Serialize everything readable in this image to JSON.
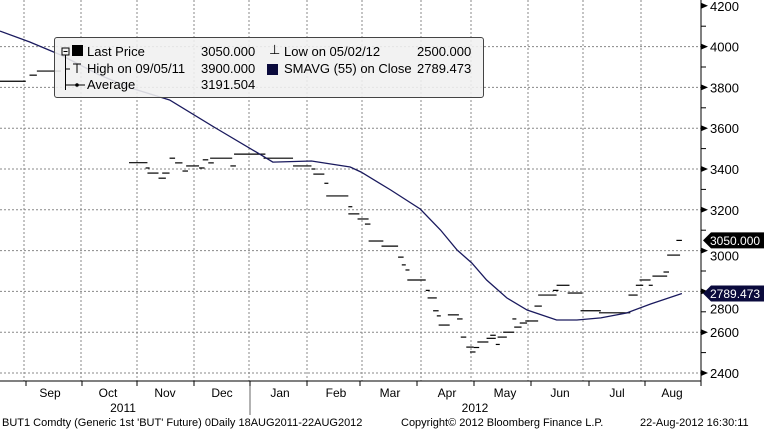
{
  "chart_data": {
    "type": "line",
    "title": "",
    "instrument": "BUT1 Comdty (Generic 1st 'BUT' Future)",
    "y_axis": {
      "side": "right",
      "range": [
        2400,
        4200
      ],
      "ticks": [
        2400,
        2600,
        2800,
        3000,
        3200,
        3400,
        3600,
        3800,
        4000,
        4200
      ],
      "tick_labels": [
        "2400",
        "2600",
        "2800",
        "3000",
        "3200",
        "3400",
        "3600",
        "3800",
        "4000",
        "4200"
      ]
    },
    "x_axis": {
      "range": [
        "2011-08-18",
        "2012-08-22"
      ],
      "month_labels": [
        "Sep",
        "Oct",
        "Nov",
        "Dec",
        "Jan",
        "Feb",
        "Mar",
        "Apr",
        "May",
        "Jun",
        "Jul",
        "Aug"
      ],
      "year_labels": [
        "2011",
        "2012"
      ]
    },
    "grid": true,
    "colors": {
      "price": "#000000",
      "smavg": "#1a1a5e",
      "last_tag": "#000000",
      "smavg_tag": "#0a0a3c"
    },
    "price_series": {
      "name": "Last Price",
      "style": "horizontal-dash",
      "segments": [
        [
          "2011-08-18",
          "2011-09-01",
          3830
        ],
        [
          "2011-09-03",
          "2011-09-07",
          3860
        ],
        [
          "2011-09-07",
          "2011-09-20",
          3880
        ],
        [
          "2011-10-27",
          "2011-11-06",
          3431
        ],
        [
          "2011-11-05",
          "2011-11-07",
          3405
        ],
        [
          "2011-11-06",
          "2011-11-12",
          3380
        ],
        [
          "2011-11-12",
          "2011-11-16",
          3355
        ],
        [
          "2011-11-14",
          "2011-11-18",
          3380
        ],
        [
          "2011-11-18",
          "2011-11-21",
          3453
        ],
        [
          "2011-11-21",
          "2011-11-25",
          3430
        ],
        [
          "2011-11-25",
          "2011-11-28",
          3390
        ],
        [
          "2011-11-27",
          "2011-12-04",
          3415
        ],
        [
          "2011-12-04",
          "2011-12-07",
          3405
        ],
        [
          "2011-12-06",
          "2011-12-09",
          3445
        ],
        [
          "2011-12-09",
          "2011-12-12",
          3430
        ],
        [
          "2011-12-10",
          "2011-12-22",
          3453
        ],
        [
          "2011-12-21",
          "2011-12-24",
          3415
        ],
        [
          "2011-12-23",
          "2012-01-09",
          3473
        ],
        [
          "2012-01-08",
          "2012-01-24",
          3453
        ],
        [
          "2012-01-24",
          "2012-02-03",
          3415
        ],
        [
          "2012-02-03",
          "2012-02-05",
          3400
        ],
        [
          "2012-02-04",
          "2012-02-10",
          3375
        ],
        [
          "2012-02-10",
          "2012-02-11",
          3330
        ],
        [
          "2012-02-11",
          "2012-02-23",
          3268
        ],
        [
          "2012-02-23",
          "2012-02-25",
          3215
        ],
        [
          "2012-02-23",
          "2012-02-29",
          3180
        ],
        [
          "2012-02-28",
          "2012-03-05",
          3155
        ],
        [
          "2012-03-03",
          "2012-03-06",
          3130
        ],
        [
          "2012-03-05",
          "2012-03-13",
          3047
        ],
        [
          "2012-03-12",
          "2012-03-21",
          3022
        ],
        [
          "2012-03-21",
          "2012-03-24",
          2968
        ],
        [
          "2012-03-23",
          "2012-03-25",
          2930
        ],
        [
          "2012-03-25",
          "2012-03-27",
          2905
        ],
        [
          "2012-03-26",
          "2012-04-05",
          2856
        ],
        [
          "2012-04-05",
          "2012-04-06",
          2805
        ],
        [
          "2012-04-06",
          "2012-04-11",
          2768
        ],
        [
          "2012-04-09",
          "2012-04-12",
          2705
        ],
        [
          "2012-04-11",
          "2012-04-13",
          2680
        ],
        [
          "2012-04-12",
          "2012-04-18",
          2635
        ],
        [
          "2012-04-17",
          "2012-04-23",
          2685
        ],
        [
          "2012-04-22",
          "2012-04-25",
          2665
        ],
        [
          "2012-04-24",
          "2012-04-27",
          2576
        ],
        [
          "2012-04-27",
          "2012-05-01",
          2527
        ],
        [
          "2012-04-29",
          "2012-05-02",
          2503
        ],
        [
          "2012-05-01",
          "2012-05-04",
          2525
        ],
        [
          "2012-05-03",
          "2012-05-09",
          2552
        ],
        [
          "2012-05-08",
          "2012-05-13",
          2570
        ],
        [
          "2012-05-10",
          "2012-05-13",
          2585
        ],
        [
          "2012-05-13",
          "2012-05-15",
          2540
        ],
        [
          "2012-05-14",
          "2012-05-19",
          2576
        ],
        [
          "2012-05-17",
          "2012-05-23",
          2600
        ],
        [
          "2012-05-22",
          "2012-05-24",
          2665
        ],
        [
          "2012-05-23",
          "2012-05-27",
          2625
        ],
        [
          "2012-05-26",
          "2012-05-30",
          2645
        ],
        [
          "2012-05-29",
          "2012-06-05",
          2655
        ],
        [
          "2012-06-03",
          "2012-06-07",
          2728
        ],
        [
          "2012-06-05",
          "2012-06-15",
          2782
        ],
        [
          "2012-06-13",
          "2012-06-16",
          2805
        ],
        [
          "2012-06-15",
          "2012-06-22",
          2830
        ],
        [
          "2012-06-21",
          "2012-06-29",
          2792
        ],
        [
          "2012-06-28",
          "2012-07-09",
          2705
        ],
        [
          "2012-07-08",
          "2012-07-25",
          2695
        ],
        [
          "2012-07-24",
          "2012-07-29",
          2782
        ],
        [
          "2012-07-28",
          "2012-08-01",
          2830
        ],
        [
          "2012-07-30",
          "2012-08-05",
          2856
        ],
        [
          "2012-08-04",
          "2012-08-06",
          2830
        ],
        [
          "2012-08-06",
          "2012-08-14",
          2875
        ],
        [
          "2012-08-12",
          "2012-08-15",
          2895
        ],
        [
          "2012-08-14",
          "2012-08-21",
          2978
        ],
        [
          "2012-08-19",
          "2012-08-22",
          3050
        ]
      ]
    },
    "smavg_series": {
      "name": "SMAVG (55) on Close",
      "points": [
        [
          "2011-08-18",
          4076
        ],
        [
          "2011-09-03",
          4023
        ],
        [
          "2011-09-20",
          3959
        ],
        [
          "2011-10-11",
          3861
        ],
        [
          "2011-10-28",
          3797
        ],
        [
          "2011-11-18",
          3738
        ],
        [
          "2011-12-13",
          3601
        ],
        [
          "2012-01-05",
          3478
        ],
        [
          "2012-01-13",
          3434
        ],
        [
          "2012-02-03",
          3439
        ],
        [
          "2012-02-24",
          3410
        ],
        [
          "2012-03-01",
          3385
        ],
        [
          "2012-03-17",
          3297
        ],
        [
          "2012-04-02",
          3204
        ],
        [
          "2012-04-13",
          3101
        ],
        [
          "2012-04-22",
          3003
        ],
        [
          "2012-04-30",
          2939
        ],
        [
          "2012-05-08",
          2856
        ],
        [
          "2012-05-19",
          2768
        ],
        [
          "2012-05-30",
          2709
        ],
        [
          "2012-06-15",
          2660
        ],
        [
          "2012-06-26",
          2660
        ],
        [
          "2012-07-09",
          2670
        ],
        [
          "2012-07-23",
          2694
        ],
        [
          "2012-08-05",
          2738
        ],
        [
          "2012-08-22",
          2789.473
        ]
      ]
    }
  },
  "legend": {
    "last_price_label": "Last Price",
    "last_price_value": "3050.000",
    "high_label": "High on 09/05/11",
    "high_value": "3900.000",
    "average_label": "Average",
    "average_value": "3191.504",
    "low_label": "Low on 05/02/12",
    "low_value": "2500.000",
    "smavg_label": "SMAVG (55) on Close",
    "smavg_value": "2789.473"
  },
  "tags": {
    "last": "3050.000",
    "smavg": "2789.473",
    "last_value": 3050,
    "smavg_value": 2789.473
  },
  "footer": {
    "left": "BUT1 Comdty (Generic 1st 'BUT' Future) 0Daily 18AUG2011-22AUG2012",
    "center": "Copyright© 2012 Bloomberg Finance L.P.",
    "right": "22-Aug-2012 16:30:11"
  }
}
